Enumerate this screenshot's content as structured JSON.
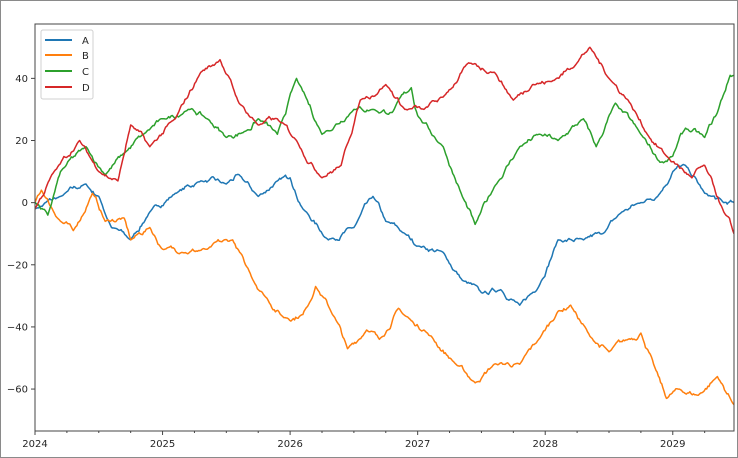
{
  "chart_data": {
    "type": "line",
    "title": "",
    "xlabel": "",
    "ylabel": "",
    "xlim": [
      2024.0,
      2029.48
    ],
    "ylim": [
      -73.5,
      57.5
    ],
    "grid": false,
    "legend_position": "upper left",
    "x_ticks": [
      {
        "value": 2024,
        "label": "2024"
      },
      {
        "value": 2025,
        "label": "2025"
      },
      {
        "value": 2026,
        "label": "2026"
      },
      {
        "value": 2027,
        "label": "2027"
      },
      {
        "value": 2028,
        "label": "2028"
      },
      {
        "value": 2029,
        "label": "2029"
      }
    ],
    "x_minor_ticks_per_year": 4,
    "y_ticks": [
      {
        "value": 40,
        "label": "40"
      },
      {
        "value": 20,
        "label": "20"
      },
      {
        "value": 0,
        "label": "0"
      },
      {
        "value": -20,
        "label": "−20"
      },
      {
        "value": -40,
        "label": "−40"
      },
      {
        "value": -60,
        "label": "−60"
      }
    ],
    "series": [
      {
        "name": "A",
        "color": "#1f77b4",
        "x": [
          2024.0,
          2024.2,
          2024.4,
          2024.5,
          2024.6,
          2024.75,
          2024.9,
          2025.1,
          2025.3,
          2025.5,
          2025.6,
          2025.75,
          2025.9,
          2026.0,
          2026.1,
          2026.3,
          2026.5,
          2026.65,
          2026.75,
          2026.9,
          2027.0,
          2027.2,
          2027.35,
          2027.5,
          2027.65,
          2027.8,
          2027.95,
          2028.1,
          2028.3,
          2028.45,
          2028.6,
          2028.75,
          2028.9,
          2029.0,
          2029.1,
          2029.25,
          2029.4,
          2029.48
        ],
        "values": [
          -2,
          2,
          6,
          2,
          -8,
          -12,
          -3,
          3,
          7,
          6,
          9,
          2,
          7,
          8,
          -2,
          -12,
          -8,
          2,
          -6,
          -10,
          -14,
          -16,
          -25,
          -29,
          -28,
          -33,
          -27,
          -12,
          -12,
          -10,
          -3,
          0,
          3,
          10,
          12,
          3,
          0,
          0
        ]
      },
      {
        "name": "B",
        "color": "#ff7f0e",
        "x": [
          2024.0,
          2024.05,
          2024.2,
          2024.3,
          2024.45,
          2024.55,
          2024.7,
          2024.75,
          2024.9,
          2025.0,
          2025.15,
          2025.35,
          2025.55,
          2025.65,
          2025.8,
          2025.95,
          2026.1,
          2026.2,
          2026.35,
          2026.45,
          2026.6,
          2026.7,
          2026.85,
          2026.95,
          2027.05,
          2027.3,
          2027.45,
          2027.6,
          2027.8,
          2027.95,
          2028.1,
          2028.2,
          2028.35,
          2028.5,
          2028.65,
          2028.75,
          2028.85,
          2028.95,
          2029.05,
          2029.2,
          2029.35,
          2029.48
        ],
        "values": [
          0,
          4,
          -6,
          -9,
          3,
          -6,
          -5,
          -12,
          -8,
          -15,
          -16,
          -15,
          -12,
          -20,
          -30,
          -37,
          -36,
          -27,
          -37,
          -47,
          -41,
          -44,
          -34,
          -38,
          -41,
          -52,
          -58,
          -52,
          -52,
          -44,
          -35,
          -33,
          -43,
          -48,
          -44,
          -42,
          -52,
          -63,
          -60,
          -62,
          -56,
          -65
        ]
      },
      {
        "name": "C",
        "color": "#2ca02c",
        "x": [
          2024.0,
          2024.1,
          2024.2,
          2024.4,
          2024.55,
          2024.7,
          2024.85,
          2025.0,
          2025.2,
          2025.35,
          2025.5,
          2025.65,
          2025.75,
          2025.9,
          2026.05,
          2026.25,
          2026.5,
          2026.65,
          2026.8,
          2026.95,
          2027.0,
          2027.2,
          2027.35,
          2027.45,
          2027.6,
          2027.8,
          2027.95,
          2028.1,
          2028.3,
          2028.4,
          2028.55,
          2028.75,
          2028.9,
          2029.0,
          2029.1,
          2029.25,
          2029.35,
          2029.45,
          2029.48
        ],
        "values": [
          0,
          -4,
          10,
          18,
          9,
          16,
          22,
          27,
          30,
          27,
          21,
          23,
          27,
          22,
          40,
          22,
          30,
          30,
          29,
          37,
          28,
          18,
          2,
          -7,
          5,
          18,
          22,
          20,
          27,
          18,
          32,
          22,
          13,
          15,
          24,
          21,
          29,
          41,
          41
        ]
      },
      {
        "name": "D",
        "color": "#d62728",
        "x": [
          2024.0,
          2024.15,
          2024.35,
          2024.5,
          2024.65,
          2024.75,
          2024.9,
          2025.1,
          2025.3,
          2025.45,
          2025.6,
          2025.75,
          2025.9,
          2026.05,
          2026.25,
          2026.4,
          2026.55,
          2026.75,
          2026.9,
          2027.05,
          2027.2,
          2027.4,
          2027.6,
          2027.75,
          2027.9,
          2028.05,
          2028.25,
          2028.35,
          2028.5,
          2028.65,
          2028.8,
          2028.95,
          2029.15,
          2029.25,
          2029.4,
          2029.48
        ],
        "values": [
          -2,
          10,
          20,
          10,
          7,
          25,
          18,
          27,
          42,
          46,
          32,
          25,
          27,
          20,
          8,
          12,
          33,
          38,
          30,
          30,
          34,
          45,
          42,
          33,
          38,
          39,
          45,
          50,
          40,
          33,
          22,
          15,
          8,
          12,
          -3,
          -10
        ]
      }
    ]
  },
  "legend": {
    "items": [
      {
        "label": "A",
        "color": "#1f77b4"
      },
      {
        "label": "B",
        "color": "#ff7f0e"
      },
      {
        "label": "C",
        "color": "#2ca02c"
      },
      {
        "label": "D",
        "color": "#d62728"
      }
    ]
  }
}
